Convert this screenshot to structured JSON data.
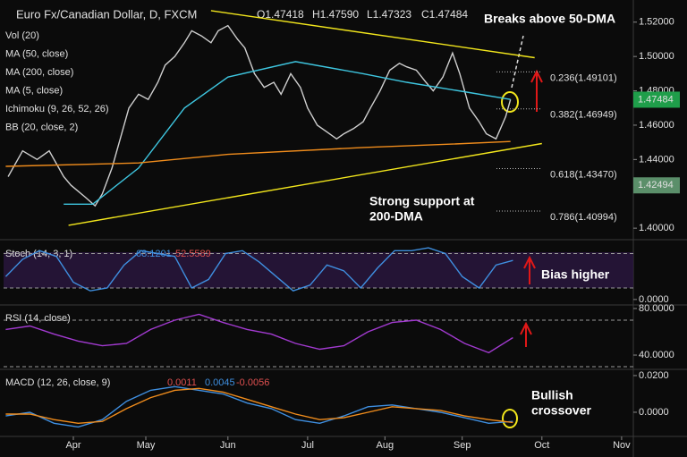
{
  "chart_data": [
    {
      "type": "line",
      "title": "Euro Fx/Canadian Dollar, D, FXCM",
      "ohlc": [
        "O1.47418",
        "H1.47590",
        "L1.47323",
        "C1.47484"
      ],
      "indicators": [
        "Vol (20)",
        "MA (50, close)",
        "MA (200, close)",
        "MA (5, close)",
        "Ichimoku (9, 26, 52, 26)",
        "BB (20, close, 2)"
      ],
      "xlim": [
        0,
        260
      ],
      "ylim": [
        1.3933,
        1.5329
      ],
      "yticks": [
        {
          "value": 1.4,
          "label": "1.40000"
        },
        {
          "value": 1.44,
          "label": "1.44000"
        },
        {
          "value": 1.46,
          "label": "1.46000"
        },
        {
          "value": 1.48,
          "label": "1.48000"
        },
        {
          "value": 1.5,
          "label": "1.50000"
        },
        {
          "value": 1.52,
          "label": "1.52000"
        }
      ],
      "series": [
        {
          "color": "#cfcfcf",
          "x": [
            1,
            7,
            13,
            18,
            24,
            27,
            33,
            37,
            40,
            44,
            48,
            51,
            55,
            59,
            63,
            66,
            70,
            74,
            77,
            81,
            85,
            88,
            92,
            96,
            99,
            103,
            107,
            111,
            114,
            118,
            122,
            125,
            129,
            133,
            137,
            140,
            144,
            148,
            151,
            155,
            159,
            163,
            166,
            170,
            174,
            177,
            181,
            185,
            188,
            192,
            196,
            199,
            203,
            207,
            209
          ],
          "values": [
            1.43,
            1.445,
            1.44,
            1.445,
            1.43,
            1.425,
            1.418,
            1.413,
            1.42,
            1.435,
            1.455,
            1.47,
            1.478,
            1.475,
            1.485,
            1.495,
            1.5,
            1.508,
            1.515,
            1.512,
            1.508,
            1.515,
            1.518,
            1.51,
            1.505,
            1.49,
            1.482,
            1.485,
            1.478,
            1.49,
            1.482,
            1.47,
            1.46,
            1.456,
            1.452,
            1.455,
            1.458,
            1.462,
            1.47,
            1.48,
            1.492,
            1.496,
            1.494,
            1.492,
            1.485,
            1.48,
            1.488,
            1.502,
            1.49,
            1.47,
            1.462,
            1.455,
            1.452,
            1.465,
            1.475
          ]
        },
        {
          "color": "#3ec6e0",
          "x": [
            24,
            36,
            55,
            74,
            92,
            120,
            148,
            166,
            192,
            209
          ],
          "values": [
            1.414,
            1.414,
            1.435,
            1.47,
            1.488,
            1.497,
            1.49,
            1.485,
            1.479,
            1.475
          ]
        },
        {
          "color": "#f08c1c",
          "x": [
            0,
            55,
            92,
            148,
            185,
            209
          ],
          "values": [
            1.436,
            1.438,
            1.443,
            1.447,
            1.449,
            1.4505
          ]
        }
      ],
      "trendlines": [
        {
          "color": "#f2e61c",
          "x": [
            85,
            219
          ],
          "values": [
            1.5267,
            1.4993
          ]
        },
        {
          "color": "#f2e61c",
          "x": [
            26,
            222
          ],
          "values": [
            1.4017,
            1.4493
          ]
        }
      ],
      "fib_levels": [
        {
          "label": "0.236(1.49101)",
          "value": 1.49101
        },
        {
          "label": "0.382(1.46949)",
          "value": 1.46949
        },
        {
          "label": "0.618(1.43470)",
          "value": 1.4347
        },
        {
          "label": "0.786(1.40994)",
          "value": 1.40994
        }
      ],
      "price_labels": [
        {
          "label": "1.47484",
          "value": 1.47484,
          "color": "#1f9e4a"
        },
        {
          "label": "1.42494",
          "value": 1.42494,
          "color": "#5b8f6a"
        }
      ],
      "annotations": [
        "Breaks above 50-DMA",
        "Strong support at",
        "200-DMA"
      ]
    },
    {
      "type": "line",
      "title": "Stoch (14, 3, 1)",
      "legend_values": [
        "68.1201",
        "52.5589"
      ],
      "xlim": [
        0,
        260
      ],
      "ylim": [
        -8,
        101
      ],
      "yticks": [
        {
          "value": 0,
          "label": "0.0000"
        }
      ],
      "levels": [
        20,
        80
      ],
      "series": [
        {
          "color": "#3f8fe0",
          "x": [
            0,
            7,
            14,
            21,
            28,
            35,
            42,
            49,
            56,
            63,
            70,
            77,
            84,
            91,
            98,
            105,
            112,
            119,
            126,
            133,
            140,
            147,
            154,
            161,
            168,
            175,
            182,
            189,
            196,
            203,
            210
          ],
          "values": [
            40,
            70,
            85,
            75,
            30,
            15,
            20,
            60,
            85,
            80,
            75,
            20,
            35,
            80,
            85,
            65,
            40,
            15,
            25,
            60,
            50,
            20,
            55,
            85,
            85,
            90,
            80,
            40,
            20,
            60,
            68
          ]
        }
      ],
      "annotations": [
        "Bias higher"
      ]
    },
    {
      "type": "line",
      "title": "RSI (14, close)",
      "xlim": [
        0,
        260
      ],
      "ylim": [
        28.5,
        81.5
      ],
      "yticks": [
        {
          "value": 40,
          "label": "40.0000"
        },
        {
          "value": 80,
          "label": "80.0000"
        }
      ],
      "levels": [
        30,
        70
      ],
      "series": [
        {
          "color": "#a23ad0",
          "x": [
            0,
            10,
            20,
            30,
            40,
            50,
            60,
            70,
            80,
            90,
            100,
            110,
            120,
            130,
            140,
            150,
            160,
            170,
            180,
            190,
            200,
            210
          ],
          "values": [
            62,
            65,
            58,
            52,
            48,
            50,
            62,
            70,
            75,
            68,
            62,
            58,
            50,
            45,
            48,
            60,
            68,
            70,
            62,
            50,
            42,
            55
          ]
        }
      ]
    },
    {
      "type": "line",
      "title": "MACD (12, 26, close, 9)",
      "legend_values": [
        "0.0011",
        "0.0045",
        "-0.0056"
      ],
      "xlim": [
        0,
        260
      ],
      "ylim": [
        -0.0127,
        0.0229
      ],
      "yticks": [
        {
          "value": 0,
          "label": "0.0000"
        },
        {
          "value": 0.02,
          "label": "0.0200"
        }
      ],
      "xticks": [
        {
          "value": 28,
          "label": "Apr"
        },
        {
          "value": 58,
          "label": "May"
        },
        {
          "value": 92,
          "label": "Jun"
        },
        {
          "value": 125,
          "label": "Jul"
        },
        {
          "value": 157,
          "label": "Aug"
        },
        {
          "value": 189,
          "label": "Sep"
        },
        {
          "value": 222,
          "label": "Oct"
        },
        {
          "value": 255,
          "label": "Nov"
        }
      ],
      "series": [
        {
          "color": "#3f8fe0",
          "x": [
            0,
            10,
            20,
            30,
            40,
            50,
            60,
            70,
            80,
            90,
            100,
            110,
            120,
            130,
            140,
            150,
            160,
            170,
            180,
            190,
            200,
            210
          ],
          "values": [
            -0.002,
            0.0,
            -0.006,
            -0.008,
            -0.004,
            0.006,
            0.012,
            0.014,
            0.012,
            0.01,
            0.005,
            0.002,
            -0.004,
            -0.006,
            -0.002,
            0.003,
            0.004,
            0.002,
            0.0,
            -0.003,
            -0.006,
            -0.005
          ]
        },
        {
          "color": "#f08c1c",
          "x": [
            0,
            10,
            20,
            30,
            40,
            50,
            60,
            70,
            80,
            90,
            100,
            110,
            120,
            130,
            140,
            150,
            160,
            170,
            180,
            190,
            200,
            210
          ],
          "values": [
            -0.001,
            -0.001,
            -0.004,
            -0.006,
            -0.005,
            0.002,
            0.008,
            0.012,
            0.013,
            0.011,
            0.007,
            0.003,
            -0.001,
            -0.004,
            -0.003,
            0.0,
            0.003,
            0.002,
            0.001,
            -0.002,
            -0.004,
            -0.0056
          ]
        }
      ],
      "annotations": [
        "Bullish",
        "crossover"
      ]
    }
  ]
}
